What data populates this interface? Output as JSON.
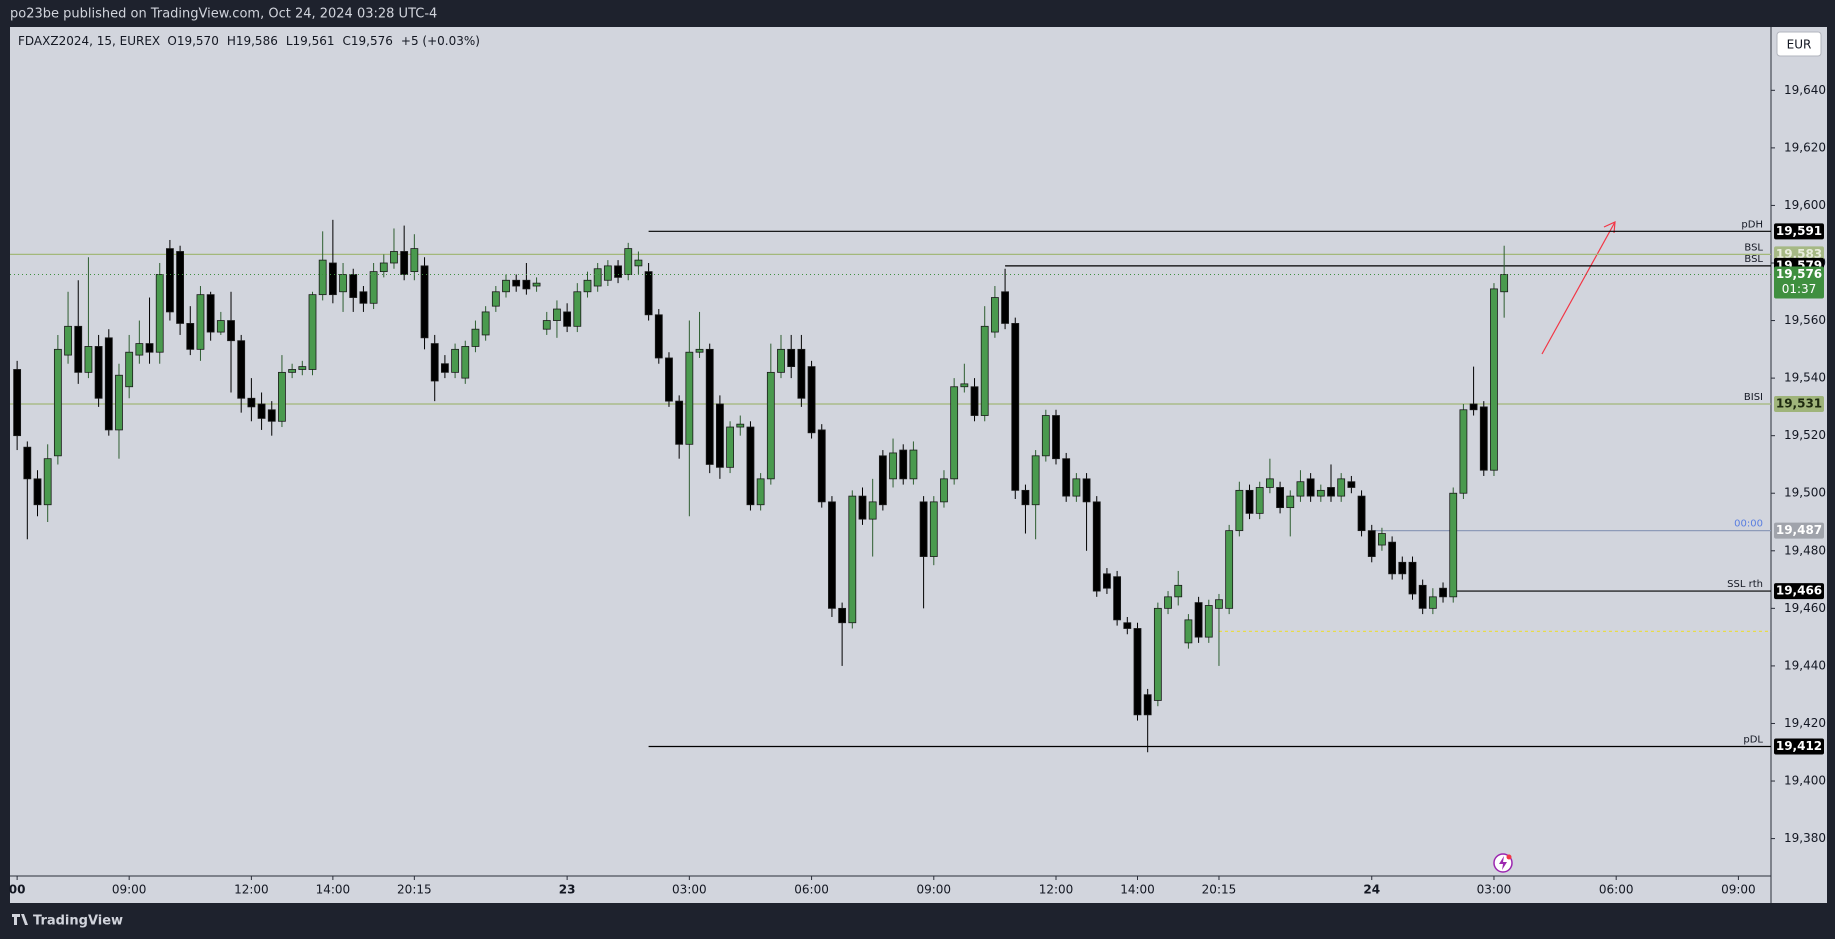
{
  "header": {
    "title": "po23be published on TradingView.com, Oct 24, 2024 03:28 UTC-4"
  },
  "footer": {
    "brand": "TradingView"
  },
  "currency": "EUR",
  "chart_data": {
    "type": "candlestick",
    "symbol": "FDAXZ2024, 15, EUREX",
    "ohlc_legend": [
      "O19,570",
      "H19,586",
      "L19,561",
      "C19,576"
    ],
    "change": "+5 (+0.03%)",
    "up_color": "#4a9a4e",
    "down_color": "#000000",
    "xlim": [
      -0.7,
      172.2
    ],
    "xticks": [
      {
        "value": 0,
        "label": "00"
      },
      {
        "value": 11,
        "label": "09:00"
      },
      {
        "value": 23,
        "label": "12:00"
      },
      {
        "value": 31,
        "label": "14:00"
      },
      {
        "value": 39,
        "label": "20:15"
      },
      {
        "value": 54,
        "label": "23"
      },
      {
        "value": 66,
        "label": "03:00"
      },
      {
        "value": 78,
        "label": "06:00"
      },
      {
        "value": 90,
        "label": "09:00"
      },
      {
        "value": 102,
        "label": "12:00"
      },
      {
        "value": 110,
        "label": "14:00"
      },
      {
        "value": 118,
        "label": "20:15"
      },
      {
        "value": 133,
        "label": "24"
      },
      {
        "value": 145,
        "label": "03:00"
      },
      {
        "value": 157,
        "label": "06:00"
      },
      {
        "value": 169,
        "label": "09:00"
      }
    ],
    "ylim": [
      19367,
      19662
    ],
    "yticks": [
      {
        "value": 19380,
        "label": "19,380"
      },
      {
        "value": 19400,
        "label": "19,400"
      },
      {
        "value": 19420,
        "label": "19,420"
      },
      {
        "value": 19440,
        "label": "19,440"
      },
      {
        "value": 19460,
        "label": "19,460"
      },
      {
        "value": 19480,
        "label": "19,480"
      },
      {
        "value": 19500,
        "label": "19,500"
      },
      {
        "value": 19520,
        "label": "19,520"
      },
      {
        "value": 19540,
        "label": "19,540"
      },
      {
        "value": 19560,
        "label": "19,560"
      },
      {
        "value": 19580,
        "label": "19,580"
      },
      {
        "value": 19600,
        "label": "19,600"
      },
      {
        "value": 19620,
        "label": "19,620"
      },
      {
        "value": 19640,
        "label": "19,640"
      }
    ],
    "open": [
      19543,
      19516,
      19505,
      19496,
      19513,
      19548,
      19558,
      19542,
      19551,
      19554,
      19522,
      19537,
      19548,
      19552,
      19549,
      19585,
      19584,
      19559,
      19550,
      19569,
      19556,
      19560,
      19553,
      19533,
      19531,
      19529,
      19525,
      19542,
      19543,
      19543,
      19569,
      19580,
      19570,
      19576,
      19570,
      19566,
      19577,
      19580,
      19584,
      19577,
      19579,
      19552,
      19545,
      19542,
      19540,
      19551,
      19555,
      19565,
      19570,
      19574,
      19574,
      19572,
      19557,
      19560,
      19563,
      19558,
      19570,
      19572,
      19574,
      19579,
      19576,
      19579,
      19577,
      19562,
      19547,
      19532,
      19517,
      19549,
      19550,
      19531,
      19509,
      19523,
      19523,
      19496,
      19505,
      19542,
      19550,
      19550,
      19544,
      19522,
      19497,
      19460,
      19455,
      19499,
      19491,
      19513,
      19505,
      19515,
      19505,
      19497,
      19478,
      19497,
      19505,
      19537,
      19537,
      19527,
      19556,
      19570,
      19559,
      19501,
      19496,
      19513,
      19527,
      19512,
      19499,
      19505,
      19497,
      19472,
      19471,
      19455,
      19453,
      19430,
      19428,
      19460,
      19464,
      19448,
      19462,
      19450,
      19460,
      19460,
      19487,
      19501,
      19493,
      19502,
      19502,
      19495,
      19499,
      19505,
      19499,
      19502,
      19499,
      19504,
      19499,
      19487,
      19482,
      19483,
      19476,
      19476,
      19468,
      19460,
      19467,
      19464,
      19500,
      19531,
      19530,
      19508,
      19570
    ],
    "high": [
      19546,
      19518,
      19508,
      19517,
      19555,
      19570,
      19574,
      19582,
      19555,
      19557,
      19545,
      19555,
      19560,
      19568,
      19580,
      19588,
      19586,
      19565,
      19572,
      19570,
      19563,
      19570,
      19555,
      19540,
      19535,
      19532,
      19548,
      19545,
      19546,
      19570,
      19591,
      19595,
      19580,
      19578,
      19572,
      19580,
      19583,
      19592,
      19593,
      19590,
      19582,
      19555,
      19548,
      19552,
      19553,
      19560,
      19565,
      19572,
      19576,
      19576,
      19580,
      19575,
      19563,
      19567,
      19566,
      19573,
      19577,
      19580,
      19581,
      19581,
      19587,
      19584,
      19580,
      19564,
      19549,
      19534,
      19560,
      19563,
      19552,
      19534,
      19525,
      19527,
      19525,
      19507,
      19552,
      19555,
      19555,
      19555,
      19546,
      19524,
      19499,
      19462,
      19501,
      19502,
      19505,
      19515,
      19519,
      19517,
      19518,
      19499,
      19499,
      19508,
      19540,
      19545,
      19540,
      19565,
      19572,
      19578,
      19561,
      19503,
      19515,
      19529,
      19529,
      19514,
      19507,
      19507,
      19499,
      19474,
      19473,
      19457,
      19455,
      19432,
      19462,
      19466,
      19473,
      19458,
      19464,
      19463,
      19465,
      19489,
      19504,
      19503,
      19504,
      19512,
      19504,
      19501,
      19508,
      19507,
      19503,
      19510,
      19507,
      19506,
      19501,
      19489,
      19488,
      19485,
      19478,
      19478,
      19470,
      19467,
      19469,
      19502,
      19531,
      19544,
      19532,
      19573,
      19586
    ],
    "low": [
      19515,
      19484,
      19492,
      19490,
      19510,
      19545,
      19538,
      19540,
      19530,
      19520,
      19512,
      19533,
      19545,
      19545,
      19545,
      19560,
      19555,
      19548,
      19546,
      19553,
      19555,
      19535,
      19528,
      19525,
      19522,
      19520,
      19523,
      19540,
      19541,
      19541,
      19567,
      19566,
      19563,
      19563,
      19563,
      19564,
      19575,
      19578,
      19574,
      19574,
      19550,
      19532,
      19540,
      19540,
      19538,
      19549,
      19553,
      19563,
      19568,
      19570,
      19569,
      19570,
      19555,
      19554,
      19556,
      19556,
      19568,
      19570,
      19572,
      19573,
      19574,
      19576,
      19560,
      19545,
      19530,
      19512,
      19492,
      19547,
      19507,
      19505,
      19507,
      19520,
      19494,
      19494,
      19503,
      19540,
      19540,
      19530,
      19519,
      19495,
      19457,
      19440,
      19453,
      19489,
      19478,
      19494,
      19502,
      19503,
      19503,
      19460,
      19475,
      19495,
      19503,
      19535,
      19525,
      19525,
      19554,
      19557,
      19498,
      19486,
      19484,
      19511,
      19510,
      19497,
      19497,
      19480,
      19464,
      19465,
      19454,
      19451,
      19421,
      19410,
      19426,
      19458,
      19461,
      19446,
      19448,
      19448,
      19440,
      19458,
      19485,
      19491,
      19491,
      19500,
      19493,
      19485,
      19497,
      19497,
      19497,
      19497,
      19497,
      19500,
      19485,
      19476,
      19480,
      19470,
      19470,
      19463,
      19458,
      19458,
      19462,
      19462,
      19498,
      19527,
      19506,
      19506,
      19561
    ],
    "close": [
      19520,
      19505,
      19496,
      19512,
      19550,
      19558,
      19542,
      19551,
      19533,
      19522,
      19541,
      19549,
      19552,
      19549,
      19576,
      19563,
      19559,
      19550,
      19569,
      19556,
      19560,
      19553,
      19533,
      19530,
      19526,
      19525,
      19542,
      19543,
      19544,
      19569,
      19581,
      19569,
      19576,
      19568,
      19566,
      19577,
      19580,
      19584,
      19576,
      19585,
      19554,
      19539,
      19542,
      19550,
      19551,
      19557,
      19563,
      19570,
      19574,
      19572,
      19571,
      19573,
      19560,
      19564,
      19558,
      19570,
      19574,
      19578,
      19579,
      19575,
      19585,
      19581,
      19562,
      19547,
      19532,
      19517,
      19549,
      19550,
      19510,
      19509,
      19523,
      19524,
      19496,
      19505,
      19542,
      19550,
      19544,
      19533,
      19521,
      19497,
      19460,
      19455,
      19499,
      19491,
      19497,
      19496,
      19514,
      19505,
      19515,
      19478,
      19497,
      19505,
      19537,
      19538,
      19527,
      19558,
      19568,
      19559,
      19501,
      19496,
      19513,
      19527,
      19512,
      19499,
      19505,
      19497,
      19466,
      19467,
      19456,
      19453,
      19423,
      19423,
      19460,
      19464,
      19468,
      19456,
      19450,
      19461,
      19463,
      19487,
      19501,
      19493,
      19502,
      19505,
      19495,
      19499,
      19504,
      19499,
      19501,
      19499,
      19505,
      19502,
      19487,
      19478,
      19486,
      19472,
      19472,
      19465,
      19460,
      19464,
      19464,
      19500,
      19529,
      19529,
      19508,
      19571,
      19576
    ],
    "levels": [
      {
        "label": "pDH",
        "value": 19591,
        "value_label": "19,591",
        "start": 62,
        "color": "#000000",
        "box": "#000000",
        "box_text": "#ffffff"
      },
      {
        "label": "BSL",
        "value": 19583,
        "value_label": "19,583",
        "color": "#a3b87a",
        "box": "#a6b985",
        "box_text": "#e8ecdc"
      },
      {
        "label": "BSL",
        "value": 19579,
        "value_label": "19,579",
        "start": 97,
        "color": "#000000",
        "box": "#000000",
        "box_text": "#ffffff"
      },
      {
        "label": "BISI",
        "value": 19531,
        "value_label": "19,531",
        "color": "#a3b87a",
        "box": "#9fb47a",
        "box_text": "#1e2a10"
      },
      {
        "label": "00:00",
        "value": 19487,
        "value_label": "19,487",
        "start": 133,
        "color": "#8e9bb8",
        "box": "#a0a3ab",
        "box_text": "#ffffff",
        "label_color": "#5b7fe0"
      },
      {
        "label": "SSL rth",
        "value": 19466,
        "value_label": "19,466",
        "start": 141,
        "color": "#000000",
        "box": "#000000",
        "box_text": "#ffffff"
      },
      {
        "value": 19452,
        "start": 118,
        "color": "#e8dc4a",
        "dash": true
      },
      {
        "label": "pDL",
        "value": 19412,
        "value_label": "19,412",
        "start": 62,
        "color": "#000000",
        "box": "#000000",
        "box_text": "#ffffff"
      }
    ],
    "last_price": {
      "value": 19576,
      "value_label": "19,576",
      "countdown": "01:37",
      "color": "#3f8f3f"
    }
  }
}
